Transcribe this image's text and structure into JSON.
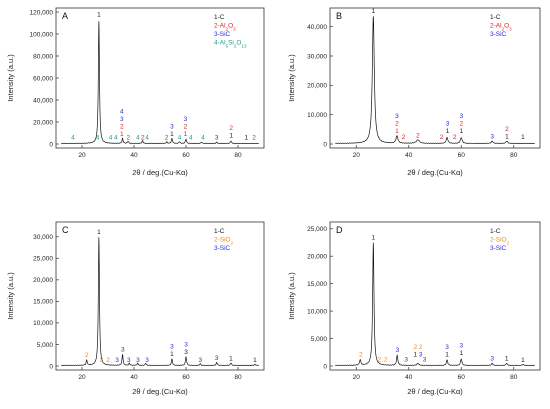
{
  "figure": {
    "xlabel": "2θ / deg.(Cu-Kα)",
    "ylabel": "Intensity (a.u.)"
  },
  "colors": {
    "1": "#1a1a1a",
    "2": "#e0211d",
    "3": "#2b2bd8",
    "4": "#1f9a8a",
    "2o": "#f08c1a"
  },
  "chart_data": [
    {
      "type": "line",
      "panel_label": "A",
      "xlim": [
        10,
        90
      ],
      "ylim": [
        0,
        120000
      ],
      "xticks": [
        20,
        40,
        60,
        80
      ],
      "yticks": [
        0,
        20000,
        40000,
        60000,
        80000,
        100000,
        120000
      ],
      "ytick_labels": [
        "0",
        "20,000",
        "40,000",
        "60,000",
        "80,000",
        "100,000",
        "120,000"
      ],
      "xlabel": "2θ / deg.(Cu-Kα)",
      "ylabel": "Intensity (a.u.)",
      "legend": [
        {
          "text": "1-C",
          "color": "1"
        },
        {
          "text": "2-Al",
          "sub": "2",
          "text2": "O",
          "sub2": "3",
          "color": "2"
        },
        {
          "text": "3-SiC",
          "color": "3"
        },
        {
          "text": "4-Al",
          "sub": "6",
          "text2": "Si",
          "sub2": "2",
          "text3": "O",
          "sub3": "13",
          "color": "4"
        }
      ],
      "peaks": [
        {
          "x": 26.5,
          "y": 112000,
          "w": 0.5
        },
        {
          "x": 35.6,
          "y": 4500,
          "w": 0.5
        },
        {
          "x": 37.7,
          "y": 2000,
          "w": 0.5
        },
        {
          "x": 43.3,
          "y": 2500,
          "w": 0.5
        },
        {
          "x": 52.6,
          "y": 1500,
          "w": 0.5
        },
        {
          "x": 54.6,
          "y": 4500,
          "w": 0.5
        },
        {
          "x": 57.5,
          "y": 1600,
          "w": 0.5
        },
        {
          "x": 60.0,
          "y": 4000,
          "w": 0.5
        },
        {
          "x": 66.0,
          "y": 1200,
          "w": 0.5
        },
        {
          "x": 71.8,
          "y": 1200,
          "w": 0.5
        },
        {
          "x": 77.3,
          "y": 2200,
          "w": 0.5
        }
      ],
      "peak_labels": [
        {
          "x": 26.5,
          "y": 114000,
          "lines": [
            {
              "t": "1",
              "c": "1"
            }
          ]
        },
        {
          "x": 16.5,
          "y": 2500,
          "lines": [
            {
              "t": "4",
              "c": "4"
            }
          ]
        },
        {
          "x": 26.0,
          "y": 2500,
          "lines": [
            {
              "t": "4",
              "c": "4"
            }
          ]
        },
        {
          "x": 31.0,
          "y": 2500,
          "lines": [
            {
              "t": "4",
              "c": "4"
            }
          ]
        },
        {
          "x": 33.0,
          "y": 2500,
          "lines": [
            {
              "t": "4",
              "c": "4"
            }
          ]
        },
        {
          "x": 35.3,
          "y": 5500,
          "lines": [
            {
              "t": "4",
              "c": "3"
            },
            {
              "t": "3",
              "c": "3"
            },
            {
              "t": "2",
              "c": "2"
            },
            {
              "t": "1",
              "c": "2"
            }
          ]
        },
        {
          "x": 37.8,
          "y": 2500,
          "lines": [
            {
              "t": "2",
              "c": "2"
            }
          ]
        },
        {
          "x": 41.5,
          "y": 2500,
          "lines": [
            {
              "t": "4",
              "c": "4"
            }
          ]
        },
        {
          "x": 43.4,
          "y": 2500,
          "lines": [
            {
              "t": "2",
              "c": "2"
            }
          ]
        },
        {
          "x": 45.0,
          "y": 2500,
          "lines": [
            {
              "t": "4",
              "c": "4"
            }
          ]
        },
        {
          "x": 52.5,
          "y": 2500,
          "lines": [
            {
              "t": "2",
              "c": "2"
            }
          ]
        },
        {
          "x": 54.6,
          "y": 5500,
          "lines": [
            {
              "t": "3",
              "c": "3"
            },
            {
              "t": "1",
              "c": "1"
            }
          ]
        },
        {
          "x": 57.5,
          "y": 2500,
          "lines": [
            {
              "t": "4",
              "c": "4"
            }
          ]
        },
        {
          "x": 59.8,
          "y": 5500,
          "lines": [
            {
              "t": "3",
              "c": "3"
            },
            {
              "t": "2",
              "c": "2"
            },
            {
              "t": "1",
              "c": "2"
            }
          ]
        },
        {
          "x": 61.8,
          "y": 2500,
          "lines": [
            {
              "t": "4",
              "c": "4"
            }
          ]
        },
        {
          "x": 66.5,
          "y": 2500,
          "lines": [
            {
              "t": "4",
              "c": "4"
            }
          ]
        },
        {
          "x": 71.8,
          "y": 2500,
          "lines": [
            {
              "t": "3",
              "c": "3"
            }
          ]
        },
        {
          "x": 77.4,
          "y": 4000,
          "lines": [
            {
              "t": "2",
              "c": "2"
            },
            {
              "t": "1",
              "c": "1"
            }
          ]
        },
        {
          "x": 83.2,
          "y": 2500,
          "lines": [
            {
              "t": "1",
              "c": "1"
            }
          ]
        },
        {
          "x": 86.2,
          "y": 2500,
          "lines": [
            {
              "t": "2",
              "c": "2"
            }
          ]
        }
      ]
    },
    {
      "type": "line",
      "panel_label": "B",
      "xlim": [
        10,
        90
      ],
      "ylim": [
        0,
        45000
      ],
      "xticks": [
        20,
        40,
        60,
        80
      ],
      "yticks": [
        0,
        10000,
        20000,
        30000,
        40000
      ],
      "ytick_labels": [
        "0",
        "10,000",
        "20,000",
        "30,000",
        "40,000"
      ],
      "xlabel": "2θ / deg.(Cu-Kα)",
      "ylabel": "Intensity (a.u.)",
      "legend": [
        {
          "text": "1-C",
          "color": "1"
        },
        {
          "text": "2-Al",
          "sub": "2",
          "text2": "O",
          "sub2": "3",
          "color": "2"
        },
        {
          "text": "3-SiC",
          "color": "3"
        }
      ],
      "peaks": [
        {
          "x": 26.5,
          "y": 43500,
          "w": 0.9
        },
        {
          "x": 35.5,
          "y": 2500,
          "w": 0.9
        },
        {
          "x": 43.5,
          "y": 1200,
          "w": 1.5
        },
        {
          "x": 54.6,
          "y": 2000,
          "w": 0.8
        },
        {
          "x": 60.0,
          "y": 2000,
          "w": 0.8
        },
        {
          "x": 71.8,
          "y": 800,
          "w": 0.8
        },
        {
          "x": 77.3,
          "y": 800,
          "w": 0.8
        }
      ],
      "peak_labels": [
        {
          "x": 26.5,
          "y": 44000,
          "lines": [
            {
              "t": "1",
              "c": "1"
            }
          ]
        },
        {
          "x": 35.5,
          "y": 3000,
          "lines": [
            {
              "t": "3",
              "c": "3"
            },
            {
              "t": "2",
              "c": "2"
            },
            {
              "t": "1",
              "c": "2"
            }
          ]
        },
        {
          "x": 38.0,
          "y": 1000,
          "lines": [
            {
              "t": "2",
              "c": "2"
            }
          ]
        },
        {
          "x": 43.5,
          "y": 1600,
          "lines": [
            {
              "t": "2",
              "c": "2"
            }
          ]
        },
        {
          "x": 52.5,
          "y": 1000,
          "lines": [
            {
              "t": "2",
              "c": "2"
            }
          ]
        },
        {
          "x": 54.8,
          "y": 3000,
          "lines": [
            {
              "t": "3",
              "c": "3"
            },
            {
              "t": "1",
              "c": "1"
            }
          ]
        },
        {
          "x": 57.5,
          "y": 1000,
          "lines": [
            {
              "t": "2",
              "c": "2"
            }
          ]
        },
        {
          "x": 60.0,
          "y": 3000,
          "lines": [
            {
              "t": "3",
              "c": "3"
            },
            {
              "t": "2",
              "c": "2"
            },
            {
              "t": "1",
              "c": "1"
            }
          ]
        },
        {
          "x": 71.8,
          "y": 1200,
          "lines": [
            {
              "t": "3",
              "c": "3"
            }
          ]
        },
        {
          "x": 77.4,
          "y": 1200,
          "lines": [
            {
              "t": "2",
              "c": "2"
            },
            {
              "t": "1",
              "c": "1"
            }
          ]
        },
        {
          "x": 83.5,
          "y": 1000,
          "lines": [
            {
              "t": "1",
              "c": "1"
            }
          ]
        }
      ]
    },
    {
      "type": "line",
      "panel_label": "C",
      "xlim": [
        10,
        90
      ],
      "ylim": [
        0,
        32500
      ],
      "xticks": [
        20,
        40,
        60,
        80
      ],
      "yticks": [
        0,
        5000,
        10000,
        15000,
        20000,
        25000,
        30000
      ],
      "ytick_labels": [
        "0",
        "5,000",
        "10,000",
        "15,000",
        "20,000",
        "25,000",
        "30,000"
      ],
      "xlabel": "2θ / deg.(Cu-Kα)",
      "ylabel": "Intensity (a.u.)",
      "legend": [
        {
          "text": "1-C",
          "color": "1"
        },
        {
          "text": "2-SiO",
          "sub": "2",
          "color": "2o"
        },
        {
          "text": "3-SiC",
          "color": "3"
        }
      ],
      "peaks": [
        {
          "x": 21.8,
          "y": 1200,
          "w": 0.5
        },
        {
          "x": 26.5,
          "y": 30000,
          "w": 0.5
        },
        {
          "x": 35.6,
          "y": 2500,
          "w": 0.5
        },
        {
          "x": 38.2,
          "y": 500,
          "w": 0.5
        },
        {
          "x": 41.4,
          "y": 500,
          "w": 0.5
        },
        {
          "x": 44.5,
          "y": 500,
          "w": 0.5
        },
        {
          "x": 54.6,
          "y": 1500,
          "w": 0.5
        },
        {
          "x": 60.0,
          "y": 2000,
          "w": 0.5
        },
        {
          "x": 65.5,
          "y": 400,
          "w": 0.5
        },
        {
          "x": 71.8,
          "y": 700,
          "w": 0.5
        },
        {
          "x": 77.3,
          "y": 600,
          "w": 0.5
        },
        {
          "x": 86.5,
          "y": 300,
          "w": 0.5
        }
      ],
      "peak_labels": [
        {
          "x": 26.5,
          "y": 30200,
          "lines": [
            {
              "t": "1",
              "c": "1"
            }
          ]
        },
        {
          "x": 21.8,
          "y": 1600,
          "lines": [
            {
              "t": "2",
              "c": "2o"
            }
          ]
        },
        {
          "x": 27.5,
          "y": 500,
          "lines": [
            {
              "t": "2",
              "c": "2o"
            }
          ]
        },
        {
          "x": 30.0,
          "y": 500,
          "lines": [
            {
              "t": "2",
              "c": "2o"
            }
          ]
        },
        {
          "x": 33.5,
          "y": 500,
          "lines": [
            {
              "t": "3",
              "c": "3"
            }
          ]
        },
        {
          "x": 35.7,
          "y": 2900,
          "lines": [
            {
              "t": "3",
              "c": "3"
            }
          ]
        },
        {
          "x": 38.0,
          "y": 500,
          "lines": [
            {
              "t": "3",
              "c": "3"
            }
          ]
        },
        {
          "x": 41.5,
          "y": 500,
          "lines": [
            {
              "t": "3",
              "c": "3"
            }
          ]
        },
        {
          "x": 45.0,
          "y": 500,
          "lines": [
            {
              "t": "3",
              "c": "3"
            }
          ]
        },
        {
          "x": 54.6,
          "y": 1900,
          "lines": [
            {
              "t": "3",
              "c": "3"
            },
            {
              "t": "1",
              "c": "1"
            }
          ]
        },
        {
          "x": 60.0,
          "y": 2300,
          "lines": [
            {
              "t": "3",
              "c": "3"
            },
            {
              "t": "3",
              "c": "1"
            }
          ]
        },
        {
          "x": 65.5,
          "y": 500,
          "lines": [
            {
              "t": "3",
              "c": "3"
            }
          ]
        },
        {
          "x": 71.8,
          "y": 900,
          "lines": [
            {
              "t": "3",
              "c": "3"
            }
          ]
        },
        {
          "x": 77.3,
          "y": 800,
          "lines": [
            {
              "t": "1",
              "c": "1"
            }
          ]
        },
        {
          "x": 86.5,
          "y": 500,
          "lines": [
            {
              "t": "1",
              "c": "1"
            }
          ]
        }
      ]
    },
    {
      "type": "line",
      "panel_label": "D",
      "xlim": [
        10,
        90
      ],
      "ylim": [
        0,
        25500
      ],
      "xticks": [
        20,
        40,
        60,
        80
      ],
      "yticks": [
        0,
        5000,
        10000,
        15000,
        20000,
        25000
      ],
      "ytick_labels": [
        "0",
        "5,000",
        "10,000",
        "15,000",
        "20,000",
        "25,000"
      ],
      "xlabel": "2θ / deg.(Cu-Kα)",
      "ylabel": "Intensity (a.u.)",
      "legend": [
        {
          "text": "1-C",
          "color": "1"
        },
        {
          "text": "2-SiO",
          "sub": "2",
          "color": "2o"
        },
        {
          "text": "3-SiC",
          "color": "3"
        }
      ],
      "peaks": [
        {
          "x": 21.5,
          "y": 1000,
          "w": 0.6
        },
        {
          "x": 26.5,
          "y": 22500,
          "w": 0.6
        },
        {
          "x": 35.6,
          "y": 1800,
          "w": 0.6
        },
        {
          "x": 43.5,
          "y": 400,
          "w": 0.8
        },
        {
          "x": 54.6,
          "y": 1000,
          "w": 0.6
        },
        {
          "x": 60.0,
          "y": 1200,
          "w": 0.6
        },
        {
          "x": 71.8,
          "y": 400,
          "w": 0.6
        },
        {
          "x": 77.3,
          "y": 400,
          "w": 0.6
        },
        {
          "x": 83.5,
          "y": 200,
          "w": 0.6
        }
      ],
      "peak_labels": [
        {
          "x": 26.5,
          "y": 22700,
          "lines": [
            {
              "t": "1",
              "c": "1"
            }
          ]
        },
        {
          "x": 21.8,
          "y": 1400,
          "lines": [
            {
              "t": "2",
              "c": "2o"
            }
          ]
        },
        {
          "x": 28.8,
          "y": 500,
          "lines": [
            {
              "t": "2",
              "c": "2o"
            }
          ]
        },
        {
          "x": 31.2,
          "y": 500,
          "lines": [
            {
              "t": "2",
              "c": "2o"
            }
          ]
        },
        {
          "x": 35.7,
          "y": 2200,
          "lines": [
            {
              "t": "3",
              "c": "3"
            }
          ]
        },
        {
          "x": 39.0,
          "y": 500,
          "lines": [
            {
              "t": "3",
              "c": "3"
            }
          ]
        },
        {
          "x": 42.5,
          "y": 1400,
          "lines": [
            {
              "t": "2",
              "c": "2o"
            },
            {
              "t": "1",
              "c": "1"
            }
          ]
        },
        {
          "x": 44.5,
          "y": 1400,
          "lines": [
            {
              "t": "2",
              "c": "2o"
            },
            {
              "t": "3",
              "c": "3"
            }
          ]
        },
        {
          "x": 46.0,
          "y": 500,
          "lines": [
            {
              "t": "3",
              "c": "3"
            }
          ]
        },
        {
          "x": 54.6,
          "y": 1400,
          "lines": [
            {
              "t": "3",
              "c": "3"
            },
            {
              "t": "1",
              "c": "1"
            }
          ]
        },
        {
          "x": 60.0,
          "y": 1600,
          "lines": [
            {
              "t": "3",
              "c": "3"
            },
            {
              "t": "1",
              "c": "1"
            }
          ]
        },
        {
          "x": 71.8,
          "y": 600,
          "lines": [
            {
              "t": "3",
              "c": "3"
            }
          ]
        },
        {
          "x": 77.3,
          "y": 600,
          "lines": [
            {
              "t": "1",
              "c": "1"
            }
          ]
        },
        {
          "x": 83.5,
          "y": 400,
          "lines": [
            {
              "t": "1",
              "c": "1"
            }
          ]
        }
      ]
    }
  ]
}
